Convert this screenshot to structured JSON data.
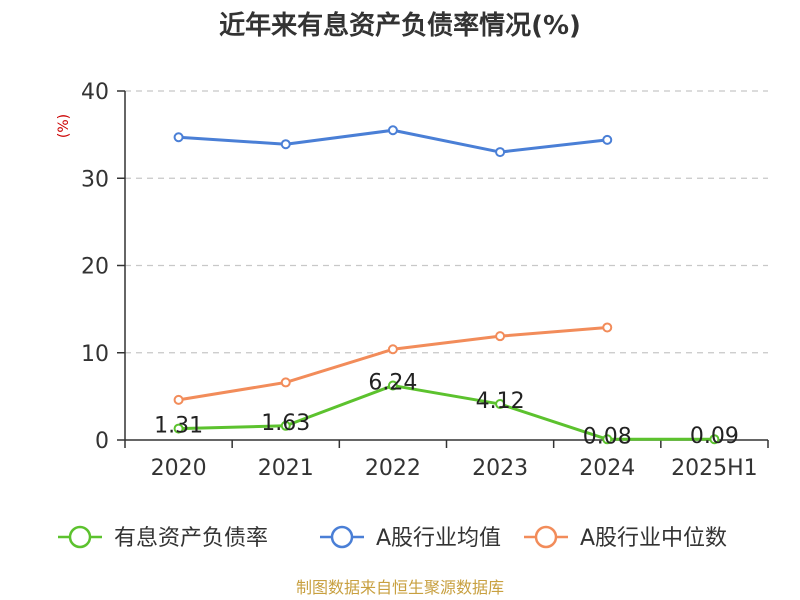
{
  "chart_data": {
    "type": "line",
    "title": "近年来有息资产负债率情况(%)",
    "ylabel": "(%)",
    "categories": [
      "2020",
      "2021",
      "2022",
      "2023",
      "2024",
      "2025H1"
    ],
    "ylim": [
      0,
      40
    ],
    "yticks": [
      0,
      10,
      20,
      30,
      40
    ],
    "grid": true,
    "legend_position": "bottom",
    "series": [
      {
        "name": "有息资产负债率",
        "color": "#5cc22e",
        "values": [
          1.31,
          1.63,
          6.24,
          4.12,
          0.08,
          0.09
        ],
        "labels": [
          "1.31",
          "1.63",
          "6.24",
          "4.12",
          "0.08",
          "0.09"
        ]
      },
      {
        "name": "A股行业均值",
        "color": "#4a7fd6",
        "values": [
          34.7,
          33.9,
          35.5,
          33.0,
          34.4,
          null
        ]
      },
      {
        "name": "A股行业中位数",
        "color": "#f28c5a",
        "values": [
          4.6,
          6.6,
          10.4,
          11.9,
          12.9,
          null
        ]
      }
    ]
  },
  "footer": {
    "source": "制图数据来自恒生聚源数据库"
  }
}
